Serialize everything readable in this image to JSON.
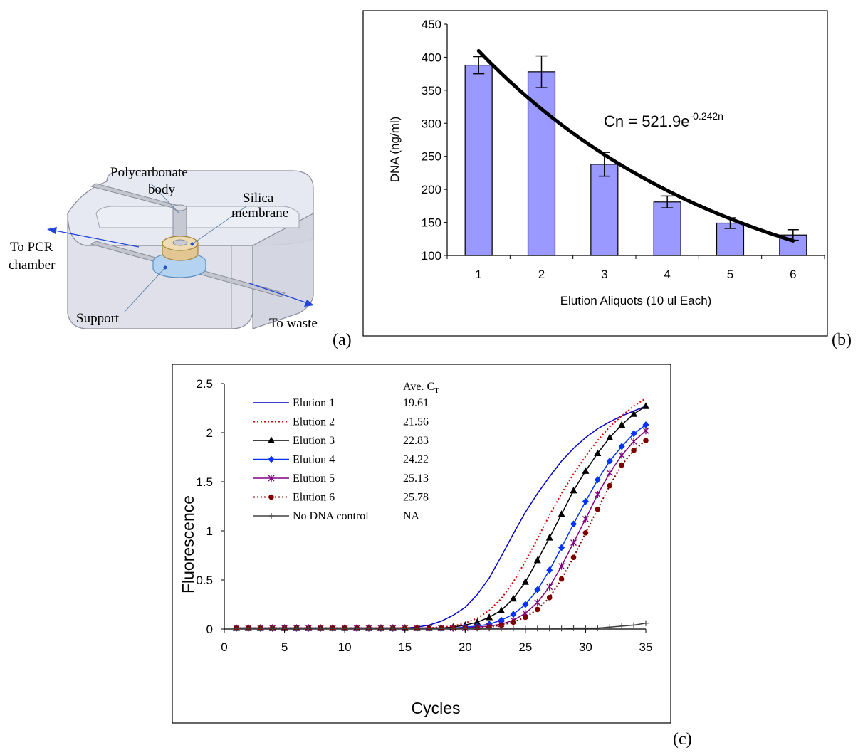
{
  "panels": {
    "a": {
      "letter": "(a)",
      "labels": {
        "polycarbonate_line1": "Polycarbonate",
        "polycarbonate_line2": "body",
        "silica_line1": "Silica",
        "silica_line2": "membrane",
        "to_pcr_line1": "To PCR",
        "to_pcr_line2": "chamber",
        "support": "Support",
        "to_waste": "To waste"
      }
    },
    "b": {
      "letter": "(b)"
    },
    "c": {
      "letter": "(c)"
    }
  },
  "chart_data": [
    {
      "id": "b",
      "type": "bar",
      "categories": [
        "1",
        "2",
        "3",
        "4",
        "5",
        "6"
      ],
      "values": [
        388,
        378,
        238,
        181,
        149,
        131
      ],
      "error": [
        13,
        24,
        18,
        9,
        8,
        8
      ],
      "fit": {
        "a": 521.9,
        "k": -0.242
      },
      "equation": {
        "prefix": "Cn = 521.9e",
        "exponent": "-0.242n"
      },
      "xlabel": "Elution Aliquots (10 ul Each)",
      "ylabel": "DNA (ng/ml)",
      "ylim": [
        100,
        450
      ],
      "yticks": [
        100,
        150,
        200,
        250,
        300,
        350,
        400,
        450
      ],
      "bar_color": "#9999ff",
      "grid": false
    },
    {
      "id": "c",
      "type": "line",
      "xlabel": "Cycles",
      "ylabel": "Fluorescence",
      "xlim": [
        0,
        35
      ],
      "ylim": [
        0,
        2.5
      ],
      "xticks": [
        0,
        5,
        10,
        15,
        20,
        25,
        30,
        35
      ],
      "yticks": [
        0,
        0.5,
        1,
        1.5,
        2,
        2.5
      ],
      "ytick_labels": [
        "0",
        "0.5",
        "1",
        "1.5",
        "2",
        "2.5"
      ],
      "legend_header": {
        "text": "Ave. C",
        "sub": "T"
      },
      "legend_position": "top-left",
      "grid": false,
      "series": [
        {
          "name": "Elution 1",
          "ct": "19.61",
          "color": "#0000cc",
          "style": "solid",
          "marker": "none",
          "x": [
            1,
            2,
            3,
            4,
            5,
            6,
            7,
            8,
            9,
            10,
            11,
            12,
            13,
            14,
            15,
            16,
            17,
            18,
            19,
            20,
            21,
            22,
            23,
            24,
            25,
            26,
            27,
            28,
            29,
            30,
            31,
            32,
            33,
            34,
            35
          ],
          "y": [
            0.01,
            0.01,
            0.01,
            0.01,
            0.01,
            0.01,
            0.01,
            0.01,
            0.01,
            0.01,
            0.01,
            0.01,
            0.01,
            0.01,
            0.01,
            0.02,
            0.04,
            0.08,
            0.14,
            0.22,
            0.35,
            0.52,
            0.74,
            0.97,
            1.19,
            1.38,
            1.55,
            1.71,
            1.84,
            1.95,
            2.04,
            2.11,
            2.17,
            2.22,
            2.27
          ]
        },
        {
          "name": "Elution 2",
          "ct": "21.56",
          "color": "#dd0000",
          "style": "dotted",
          "marker": "none",
          "x": [
            1,
            2,
            3,
            4,
            5,
            6,
            7,
            8,
            9,
            10,
            11,
            12,
            13,
            14,
            15,
            16,
            17,
            18,
            19,
            20,
            21,
            22,
            23,
            24,
            25,
            26,
            27,
            28,
            29,
            30,
            31,
            32,
            33,
            34,
            35
          ],
          "y": [
            0.01,
            0.01,
            0.01,
            0.01,
            0.01,
            0.01,
            0.01,
            0.01,
            0.01,
            0.01,
            0.01,
            0.01,
            0.01,
            0.01,
            0.01,
            0.01,
            0.01,
            0.02,
            0.03,
            0.06,
            0.11,
            0.19,
            0.31,
            0.48,
            0.69,
            0.92,
            1.16,
            1.38,
            1.58,
            1.76,
            1.92,
            2.06,
            2.17,
            2.27,
            2.35
          ]
        },
        {
          "name": "Elution 3",
          "ct": "22.83",
          "color": "#000000",
          "style": "solid",
          "marker": "triangle",
          "x": [
            1,
            2,
            3,
            4,
            5,
            6,
            7,
            8,
            9,
            10,
            11,
            12,
            13,
            14,
            15,
            16,
            17,
            18,
            19,
            20,
            21,
            22,
            23,
            24,
            25,
            26,
            27,
            28,
            29,
            30,
            31,
            32,
            33,
            34,
            35
          ],
          "y": [
            0.01,
            0.01,
            0.01,
            0.01,
            0.01,
            0.01,
            0.01,
            0.01,
            0.01,
            0.01,
            0.01,
            0.01,
            0.01,
            0.01,
            0.01,
            0.01,
            0.01,
            0.01,
            0.02,
            0.04,
            0.07,
            0.12,
            0.19,
            0.31,
            0.48,
            0.7,
            0.93,
            1.17,
            1.41,
            1.61,
            1.79,
            1.95,
            2.08,
            2.19,
            2.27
          ]
        },
        {
          "name": "Elution 4",
          "ct": "24.22",
          "color": "#0033ff",
          "style": "solid",
          "marker": "diamond",
          "x": [
            1,
            2,
            3,
            4,
            5,
            6,
            7,
            8,
            9,
            10,
            11,
            12,
            13,
            14,
            15,
            16,
            17,
            18,
            19,
            20,
            21,
            22,
            23,
            24,
            25,
            26,
            27,
            28,
            29,
            30,
            31,
            32,
            33,
            34,
            35
          ],
          "y": [
            0.01,
            0.01,
            0.01,
            0.01,
            0.01,
            0.01,
            0.01,
            0.01,
            0.01,
            0.01,
            0.01,
            0.01,
            0.01,
            0.01,
            0.01,
            0.01,
            0.01,
            0.01,
            0.01,
            0.02,
            0.03,
            0.05,
            0.09,
            0.15,
            0.25,
            0.4,
            0.6,
            0.83,
            1.07,
            1.3,
            1.52,
            1.71,
            1.86,
            1.99,
            2.08
          ]
        },
        {
          "name": "Elution 5",
          "ct": "25.13",
          "color": "#800080",
          "style": "solid",
          "marker": "asterisk",
          "x": [
            1,
            2,
            3,
            4,
            5,
            6,
            7,
            8,
            9,
            10,
            11,
            12,
            13,
            14,
            15,
            16,
            17,
            18,
            19,
            20,
            21,
            22,
            23,
            24,
            25,
            26,
            27,
            28,
            29,
            30,
            31,
            32,
            33,
            34,
            35
          ],
          "y": [
            0.01,
            0.01,
            0.01,
            0.01,
            0.01,
            0.01,
            0.01,
            0.01,
            0.01,
            0.01,
            0.01,
            0.01,
            0.01,
            0.01,
            0.01,
            0.01,
            0.01,
            0.01,
            0.01,
            0.01,
            0.02,
            0.03,
            0.05,
            0.09,
            0.16,
            0.27,
            0.43,
            0.64,
            0.88,
            1.12,
            1.37,
            1.59,
            1.77,
            1.91,
            2.02
          ]
        },
        {
          "name": "Elution 6",
          "ct": "25.78",
          "color": "#800000",
          "style": "dotted",
          "marker": "circle",
          "x": [
            1,
            2,
            3,
            4,
            5,
            6,
            7,
            8,
            9,
            10,
            11,
            12,
            13,
            14,
            15,
            16,
            17,
            18,
            19,
            20,
            21,
            22,
            23,
            24,
            25,
            26,
            27,
            28,
            29,
            30,
            31,
            32,
            33,
            34,
            35
          ],
          "y": [
            0.01,
            0.01,
            0.01,
            0.01,
            0.01,
            0.01,
            0.01,
            0.01,
            0.01,
            0.01,
            0.01,
            0.01,
            0.01,
            0.01,
            0.01,
            0.01,
            0.01,
            0.01,
            0.01,
            0.01,
            0.01,
            0.02,
            0.04,
            0.07,
            0.12,
            0.2,
            0.32,
            0.51,
            0.73,
            0.98,
            1.22,
            1.46,
            1.67,
            1.82,
            1.92
          ]
        },
        {
          "name": "No DNA control",
          "ct": "NA",
          "color": "#404040",
          "style": "solid",
          "marker": "plus",
          "x": [
            1,
            2,
            3,
            4,
            5,
            6,
            7,
            8,
            9,
            10,
            11,
            12,
            13,
            14,
            15,
            16,
            17,
            18,
            19,
            20,
            21,
            22,
            23,
            24,
            25,
            26,
            27,
            28,
            29,
            30,
            31,
            32,
            33,
            34,
            35
          ],
          "y": [
            0.005,
            0.005,
            0.005,
            0.005,
            0.005,
            0.005,
            0.005,
            0.005,
            0.005,
            0.005,
            0.005,
            0.005,
            0.005,
            0.005,
            0.005,
            0.005,
            0.005,
            0.005,
            0.005,
            0.005,
            0.005,
            0.005,
            0.005,
            0.005,
            0.005,
            0.005,
            0.005,
            0.005,
            0.01,
            0.01,
            0.01,
            0.02,
            0.03,
            0.04,
            0.06
          ]
        }
      ]
    }
  ]
}
